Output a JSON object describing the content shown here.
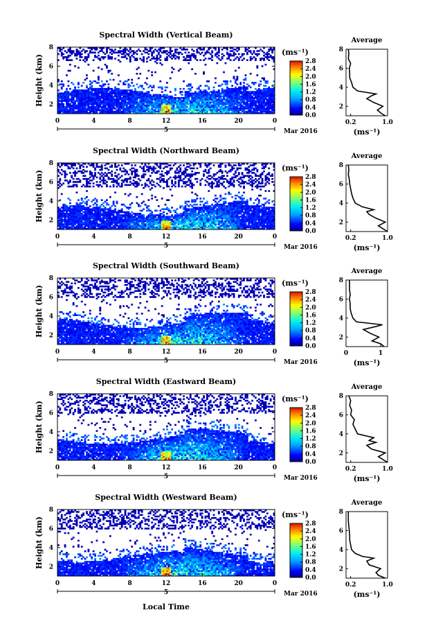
{
  "figure": {
    "xlabel": "Local Time",
    "date_label": "Mar 2016",
    "day_label": "5",
    "colorbar_unit": "(ms⁻¹)",
    "colorbar_ticks": [
      "0.0",
      "0.4",
      "0.8",
      "1.2",
      "1.6",
      "2.0",
      "2.4",
      "2.8"
    ],
    "avg_title": "Average",
    "avg_xlabel": "(ms⁻¹)"
  },
  "chart_data": [
    {
      "type": "heatmap",
      "title": "Spectral Width (Vertical Beam)",
      "ylabel": "Height (km)",
      "xlabel": "",
      "xlim": [
        0,
        24
      ],
      "ylim": [
        1,
        8
      ],
      "xticks": [
        "0",
        "4",
        "8",
        "12",
        "16",
        "20",
        "0"
      ],
      "yticks": [
        "2",
        "4",
        "6",
        "8"
      ],
      "colorbar_range": [
        0.0,
        2.8
      ],
      "upper_sparse_band_km": [
        6.5,
        8
      ],
      "dense_layer_top_km": 3.2,
      "average_profile": {
        "xlim": [
          0.1,
          1.0
        ],
        "xticks": [
          "0.2",
          "1.0"
        ],
        "yticks": [
          "2",
          "4",
          "6",
          "8"
        ],
        "height": [
          1.0,
          1.3,
          1.6,
          2.0,
          2.4,
          2.8,
          3.1,
          3.3,
          3.6,
          4.0,
          4.5,
          5.0,
          5.5,
          6.0,
          6.5,
          7.0,
          7.5,
          8.0
        ],
        "value": [
          0.95,
          0.85,
          0.78,
          0.9,
          0.7,
          0.55,
          0.65,
          0.75,
          0.35,
          0.25,
          0.22,
          0.18,
          0.18,
          0.17,
          0.2,
          0.15,
          0.16,
          0.15
        ]
      }
    },
    {
      "type": "heatmap",
      "title": "Spectral Width (Northward Beam)",
      "ylabel": "Height (km)",
      "xlabel": "",
      "xlim": [
        0,
        24
      ],
      "ylim": [
        1,
        8
      ],
      "xticks": [
        "0",
        "4",
        "8",
        "12",
        "16",
        "20",
        "0"
      ],
      "yticks": [
        "2",
        "4",
        "6",
        "8"
      ],
      "colorbar_range": [
        0.0,
        2.8
      ],
      "upper_sparse_band_km": [
        5.5,
        8
      ],
      "dense_layer_top_km": 3.0,
      "average_profile": {
        "xlim": [
          0.1,
          1.0
        ],
        "xticks": [
          "0.2",
          "1.0"
        ],
        "yticks": [
          "2",
          "4",
          "6",
          "8"
        ],
        "height": [
          1.0,
          1.3,
          1.6,
          2.0,
          2.4,
          2.8,
          3.1,
          3.3,
          3.6,
          4.0,
          4.5,
          5.0,
          5.5,
          6.0,
          6.5,
          7.0,
          7.5,
          8.0
        ],
        "value": [
          1.0,
          0.9,
          0.8,
          0.95,
          0.75,
          0.6,
          0.55,
          0.7,
          0.45,
          0.3,
          0.25,
          0.22,
          0.2,
          0.18,
          0.17,
          0.15,
          0.16,
          0.15
        ]
      }
    },
    {
      "type": "heatmap",
      "title": "Spectral Width (Southward Beam)",
      "ylabel": "Height (km)",
      "xlabel": "",
      "xlim": [
        0,
        24
      ],
      "ylim": [
        1,
        8
      ],
      "xticks": [
        "0",
        "4",
        "8",
        "12",
        "16",
        "20",
        "0"
      ],
      "yticks": [
        "2",
        "4",
        "6",
        "8"
      ],
      "colorbar_range": [
        0.0,
        2.8
      ],
      "upper_sparse_band_km": [
        6.0,
        8
      ],
      "dense_layer_top_km": 3.3,
      "average_profile": {
        "xlim": [
          0,
          1.2
        ],
        "xticks": [
          "0",
          "1"
        ],
        "yticks": [
          "2",
          "4",
          "6",
          "8"
        ],
        "height": [
          1.0,
          1.3,
          1.6,
          2.0,
          2.4,
          2.8,
          3.1,
          3.3,
          3.6,
          4.0,
          4.5,
          5.0,
          5.5,
          6.0,
          6.5,
          7.0,
          7.5,
          8.0
        ],
        "value": [
          1.1,
          1.0,
          0.75,
          0.95,
          0.7,
          0.5,
          0.85,
          1.05,
          0.3,
          0.2,
          0.15,
          0.12,
          0.12,
          0.1,
          0.12,
          0.1,
          0.1,
          0.1
        ]
      }
    },
    {
      "type": "heatmap",
      "title": "Spectral Width (Eastward Beam)",
      "ylabel": "Height (km)",
      "xlabel": "",
      "xlim": [
        0,
        24
      ],
      "ylim": [
        1,
        8
      ],
      "xticks": [
        "0",
        "4",
        "8",
        "12",
        "16",
        "20",
        "0"
      ],
      "yticks": [
        "2",
        "4",
        "6",
        "8"
      ],
      "colorbar_range": [
        0.0,
        2.8
      ],
      "upper_sparse_band_km": [
        6.0,
        8
      ],
      "dense_layer_top_km": 3.2,
      "average_profile": {
        "xlim": [
          0.1,
          1.0
        ],
        "xticks": [
          "0.2",
          "1.0"
        ],
        "yticks": [
          "2",
          "4",
          "6",
          "8"
        ],
        "height": [
          1.0,
          1.3,
          1.6,
          2.0,
          2.4,
          2.8,
          3.1,
          3.3,
          3.6,
          4.0,
          4.5,
          5.0,
          5.5,
          6.0,
          6.5,
          7.0,
          7.5,
          8.0
        ],
        "value": [
          1.0,
          0.9,
          0.8,
          0.95,
          0.65,
          0.55,
          0.75,
          0.6,
          0.7,
          0.35,
          0.3,
          0.25,
          0.28,
          0.2,
          0.22,
          0.18,
          0.2,
          0.16
        ]
      }
    },
    {
      "type": "heatmap",
      "title": "Spectral Width (Westward Beam)",
      "ylabel": "Height (km)",
      "xlabel": "Local Time",
      "xlim": [
        0,
        24
      ],
      "ylim": [
        1,
        8
      ],
      "xticks": [
        "0",
        "4",
        "8",
        "12",
        "16",
        "20",
        "0"
      ],
      "yticks": [
        "2",
        "4",
        "6",
        "8"
      ],
      "colorbar_range": [
        0.0,
        2.8
      ],
      "upper_sparse_band_km": [
        6.0,
        8
      ],
      "dense_layer_top_km": 3.0,
      "average_profile": {
        "xlim": [
          0.1,
          1.0
        ],
        "xticks": [
          "0.2",
          "1.0"
        ],
        "yticks": [
          "2",
          "4",
          "6",
          "8"
        ],
        "height": [
          1.0,
          1.3,
          1.6,
          2.0,
          2.4,
          2.8,
          3.1,
          3.3,
          3.6,
          4.0,
          4.5,
          5.0,
          5.5,
          6.0,
          6.5,
          7.0,
          7.5,
          8.0
        ],
        "value": [
          0.95,
          0.8,
          0.75,
          0.85,
          0.6,
          0.55,
          0.7,
          0.45,
          0.3,
          0.22,
          0.2,
          0.18,
          0.18,
          0.17,
          0.16,
          0.15,
          0.15,
          0.15
        ]
      }
    }
  ]
}
